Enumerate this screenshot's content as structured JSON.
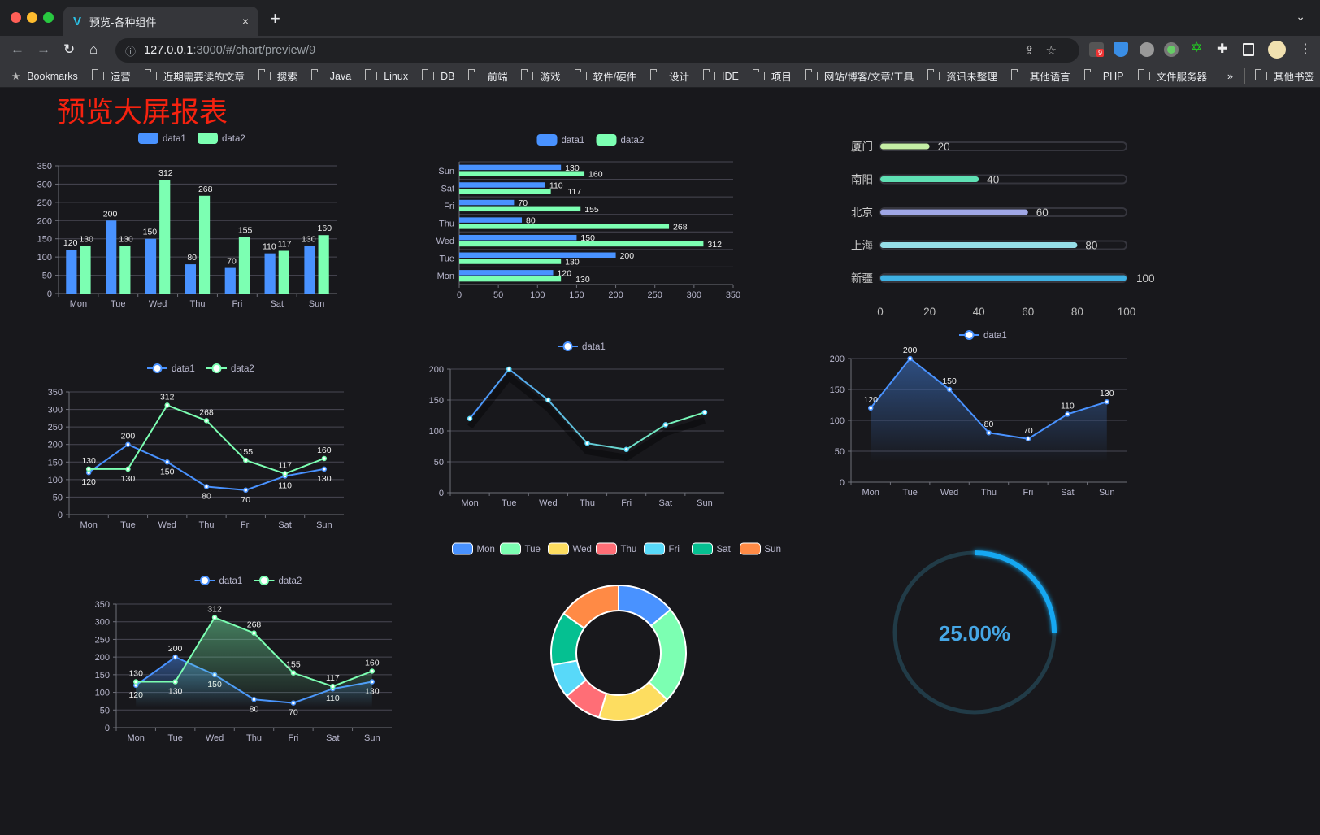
{
  "browser": {
    "tab_title": "预览-各种组件",
    "tab_close": "×",
    "new_tab": "+",
    "url_host": "127.0.0.1",
    "url_path": ":3000/#/chart/preview/9",
    "extension_badge": "9",
    "bookmarks": [
      "Bookmarks",
      "运营",
      "近期需要读的文章",
      "搜索",
      "Java",
      "Linux",
      "DB",
      "前端",
      "游戏",
      "软件/硬件",
      "设计",
      "IDE",
      "项目",
      "网站/博客/文章/工具",
      "资讯未整理",
      "其他语言",
      "PHP",
      "文件服务器"
    ],
    "bookmarks_more": "»",
    "other_bookmarks": "其他书签"
  },
  "page": {
    "title": "预览大屏报表"
  },
  "colors": {
    "blue": "#4992ff",
    "green": "#7cffb2",
    "yellow": "#fddd60",
    "red": "#ff6e76",
    "cyan": "#58d9f9",
    "teal": "#05c091",
    "orange": "#ff8a45",
    "title": "#f5220f"
  },
  "chart_data": [
    {
      "type": "bar",
      "categories": [
        "Mon",
        "Tue",
        "Wed",
        "Thu",
        "Fri",
        "Sat",
        "Sun"
      ],
      "ylim": [
        0,
        350
      ],
      "yticks": [
        "0",
        "50",
        "100",
        "150",
        "200",
        "250",
        "300",
        "350"
      ],
      "legend": "top",
      "grid": true,
      "series": [
        {
          "name": "data1",
          "values": [
            120,
            200,
            150,
            80,
            70,
            110,
            130
          ]
        },
        {
          "name": "data2",
          "values": [
            130,
            130,
            312,
            268,
            155,
            117,
            160
          ]
        }
      ]
    },
    {
      "type": "bar",
      "orientation": "horizontal",
      "categories": [
        "Mon",
        "Tue",
        "Wed",
        "Thu",
        "Fri",
        "Sat",
        "Sun"
      ],
      "xlim": [
        0,
        350
      ],
      "xticks": [
        "0",
        "50",
        "100",
        "150",
        "200",
        "250",
        "300",
        "350"
      ],
      "legend": "top",
      "grid": true,
      "series": [
        {
          "name": "data1",
          "values": [
            120,
            200,
            150,
            80,
            70,
            110,
            130
          ]
        },
        {
          "name": "data2",
          "values": [
            130,
            130,
            312,
            268,
            155,
            117,
            160
          ]
        }
      ]
    },
    {
      "type": "bar",
      "orientation": "horizontal",
      "style": "progress",
      "categories": [
        "厦门",
        "南阳",
        "北京",
        "上海",
        "新疆"
      ],
      "values": [
        20,
        40,
        60,
        80,
        100
      ],
      "labels": [
        "20",
        "40",
        "60",
        "80",
        "100"
      ],
      "xlim": [
        0,
        100
      ],
      "xticks": [
        "0",
        "20",
        "40",
        "60",
        "80",
        "100"
      ],
      "colors": [
        "#c5eea5",
        "#5fe0b4",
        "#a0a7e6",
        "#96dee8",
        "#3fb1e3"
      ]
    },
    {
      "type": "line",
      "categories": [
        "Mon",
        "Tue",
        "Wed",
        "Thu",
        "Fri",
        "Sat",
        "Sun"
      ],
      "ylim": [
        0,
        350
      ],
      "yticks": [
        "0",
        "50",
        "100",
        "150",
        "200",
        "250",
        "300",
        "350"
      ],
      "legend": "top",
      "grid": true,
      "series": [
        {
          "name": "data1",
          "values": [
            120,
            200,
            150,
            80,
            70,
            110,
            130
          ]
        },
        {
          "name": "data2",
          "values": [
            130,
            130,
            312,
            268,
            155,
            117,
            160
          ]
        }
      ]
    },
    {
      "type": "line",
      "categories": [
        "Mon",
        "Tue",
        "Wed",
        "Thu",
        "Fri",
        "Sat",
        "Sun"
      ],
      "ylim": [
        0,
        200
      ],
      "yticks": [
        "0",
        "50",
        "100",
        "150",
        "200"
      ],
      "legend": "top",
      "grid": true,
      "series": [
        {
          "name": "data1",
          "values": [
            120,
            200,
            150,
            80,
            70,
            110,
            130
          ]
        }
      ]
    },
    {
      "type": "area",
      "categories": [
        "Mon",
        "Tue",
        "Wed",
        "Thu",
        "Fri",
        "Sat",
        "Sun"
      ],
      "ylim": [
        0,
        200
      ],
      "yticks": [
        "0",
        "50",
        "100",
        "150",
        "200"
      ],
      "legend": "top",
      "grid": true,
      "series": [
        {
          "name": "data1",
          "values": [
            120,
            200,
            150,
            80,
            70,
            110,
            130
          ]
        }
      ]
    },
    {
      "type": "area",
      "categories": [
        "Mon",
        "Tue",
        "Wed",
        "Thu",
        "Fri",
        "Sat",
        "Sun"
      ],
      "ylim": [
        0,
        350
      ],
      "yticks": [
        "0",
        "50",
        "100",
        "150",
        "200",
        "250",
        "300",
        "350"
      ],
      "legend": "top",
      "grid": true,
      "series": [
        {
          "name": "data1",
          "values": [
            120,
            200,
            150,
            80,
            70,
            110,
            130
          ]
        },
        {
          "name": "data2",
          "values": [
            130,
            130,
            312,
            268,
            155,
            117,
            160
          ]
        }
      ]
    },
    {
      "type": "pie",
      "style": "donut",
      "legend": "top",
      "categories": [
        "Mon",
        "Tue",
        "Wed",
        "Thu",
        "Fri",
        "Sat",
        "Sun"
      ],
      "values": [
        120,
        200,
        150,
        80,
        70,
        110,
        130
      ]
    },
    {
      "type": "gauge",
      "style": "ring-progress",
      "value": 0.25,
      "label": "25.00%"
    }
  ]
}
